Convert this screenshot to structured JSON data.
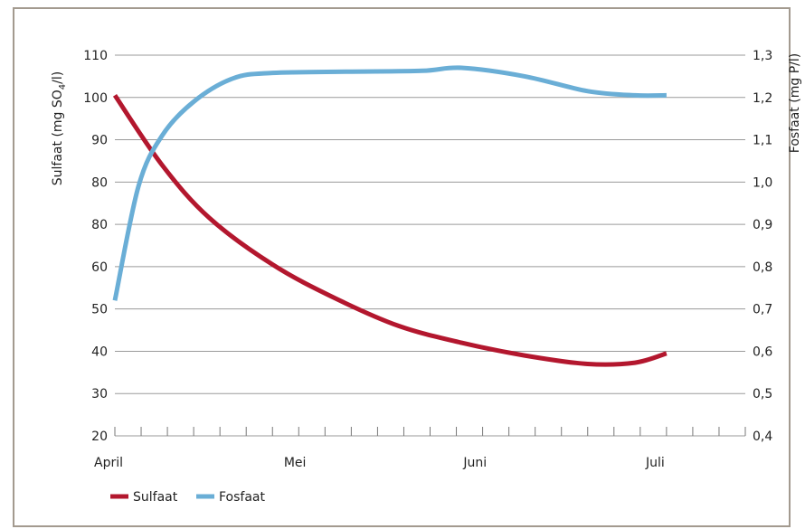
{
  "chart_data": {
    "type": "line",
    "title": "",
    "xlabel": "",
    "x_tick_labels": [
      "April",
      "Mei",
      "Juni",
      "Juli"
    ],
    "x_range": [
      0,
      4
    ],
    "y_left": {
      "label_prefix": "Sulfaat (mg SO",
      "label_subscript": "4",
      "label_suffix": "/l)",
      "range": [
        20,
        110
      ],
      "tick_labels": [
        "20",
        "30",
        "40",
        "50",
        "60",
        "80",
        "80",
        "90",
        "100",
        "110"
      ]
    },
    "y_right": {
      "label": "Fosfaat (mg P/l)",
      "range": [
        0.4,
        1.3
      ],
      "tick_labels": [
        "0,4",
        "0,5",
        "0,6",
        "0,7",
        "0,8",
        "0,9",
        "1,0",
        "1,1",
        "1,2",
        "1,3"
      ]
    },
    "grid": "horizontal",
    "legend_position": "bottom-left",
    "series": [
      {
        "name": "Sulfaat",
        "axis": "left",
        "color": "#b3172e",
        "x": [
          0.0,
          0.3,
          0.6,
          1.0,
          1.4,
          1.8,
          2.2,
          2.6,
          3.0,
          3.3,
          3.5
        ],
        "values": [
          100.5,
          84.0,
          71.5,
          60.5,
          52.5,
          46.0,
          42.0,
          39.0,
          37.0,
          37.3,
          39.5
        ]
      },
      {
        "name": "Fosfaat",
        "axis": "right",
        "color": "#6aaed6",
        "x": [
          0.0,
          0.15,
          0.3,
          0.5,
          0.75,
          1.0,
          1.5,
          1.95,
          2.2,
          2.6,
          3.0,
          3.3,
          3.5
        ],
        "values": [
          0.72,
          0.99,
          1.11,
          1.19,
          1.245,
          1.258,
          1.261,
          1.263,
          1.27,
          1.25,
          1.215,
          1.205,
          1.205
        ]
      }
    ]
  }
}
